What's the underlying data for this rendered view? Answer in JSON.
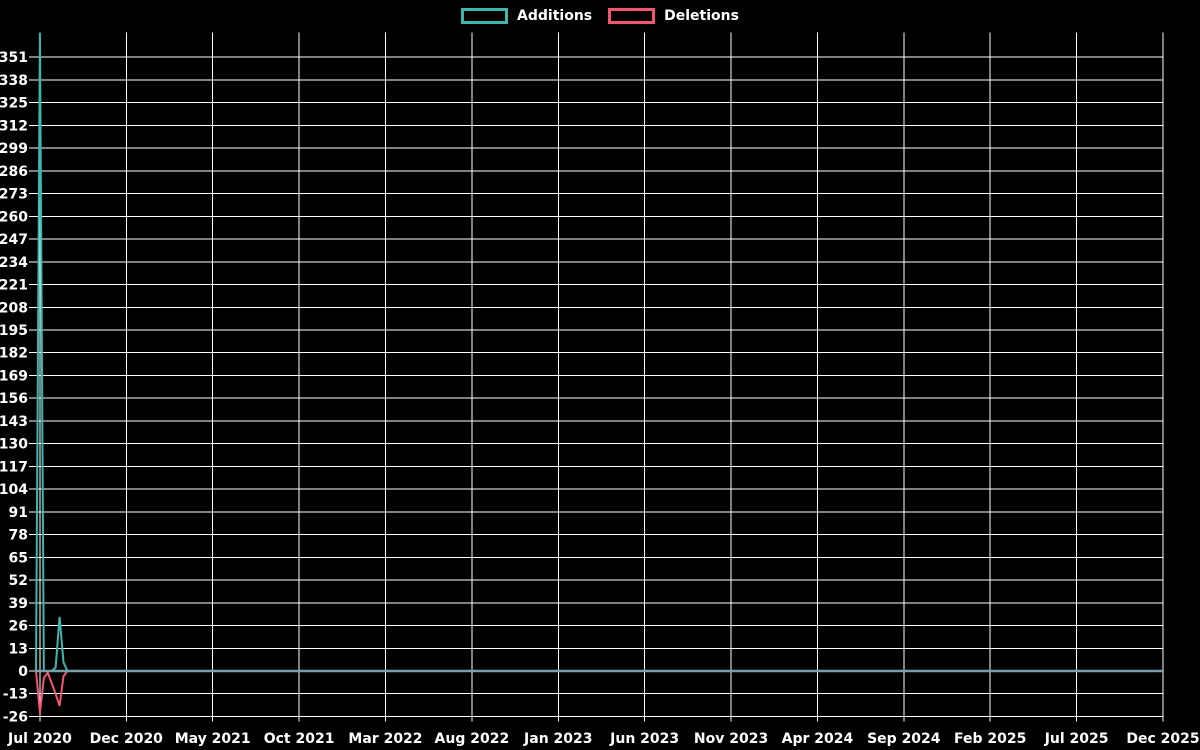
{
  "page": {
    "background": "#000000",
    "text_color": "#ffffff"
  },
  "legend": {
    "position": "top-center",
    "items": [
      {
        "label": "Additions",
        "color": "#3db7ae"
      },
      {
        "label": "Deletions",
        "color": "#f25570"
      }
    ]
  },
  "chart_data": {
    "type": "line",
    "title": "",
    "description": "Weekly code additions and deletions over time; a large additions spike and deletions dip at the start (Jul 2020), a smaller pair of bumps shortly after, then both series flat at zero through Dec 2025.",
    "x_unit": "week",
    "points_total": 288,
    "x_tick_labels": [
      "Jul 2020",
      "Dec 2020",
      "May 2021",
      "Oct 2021",
      "Mar 2022",
      "Aug 2022",
      "Jan 2023",
      "Jun 2023",
      "Nov 2023",
      "Apr 2024",
      "Sep 2024",
      "Feb 2025",
      "Jul 2025",
      "Dec 2025"
    ],
    "x_ticks_every_n_points": 22,
    "x_first_tick_point_index": 1,
    "y_tick_labels": [
      "-26",
      "-13",
      "0",
      "13",
      "26",
      "39",
      "52",
      "65",
      "78",
      "91",
      "104",
      "117",
      "130",
      "143",
      "156",
      "169",
      "182",
      "195",
      "208",
      "221",
      "234",
      "247",
      "260",
      "273",
      "286",
      "299",
      "312",
      "325",
      "338",
      "351"
    ],
    "y_tick_min": -26,
    "y_tick_step": 13,
    "ylim": [
      -29,
      365
    ],
    "grid": true,
    "grid_color": "#ffffff",
    "zero_line_color": "#7aa1a7",
    "legend_position": "top-center",
    "series": [
      {
        "name": "Additions",
        "color": "#3db7ae",
        "values": [
          0,
          365,
          0,
          0,
          0,
          2,
          31,
          5,
          0
        ],
        "fill_value_after": 0
      },
      {
        "name": "Deletions",
        "color": "#f25570",
        "values": [
          0,
          -24,
          -4,
          -1,
          -7,
          -13,
          -20,
          -3,
          0
        ],
        "fill_value_after": 0
      }
    ]
  }
}
